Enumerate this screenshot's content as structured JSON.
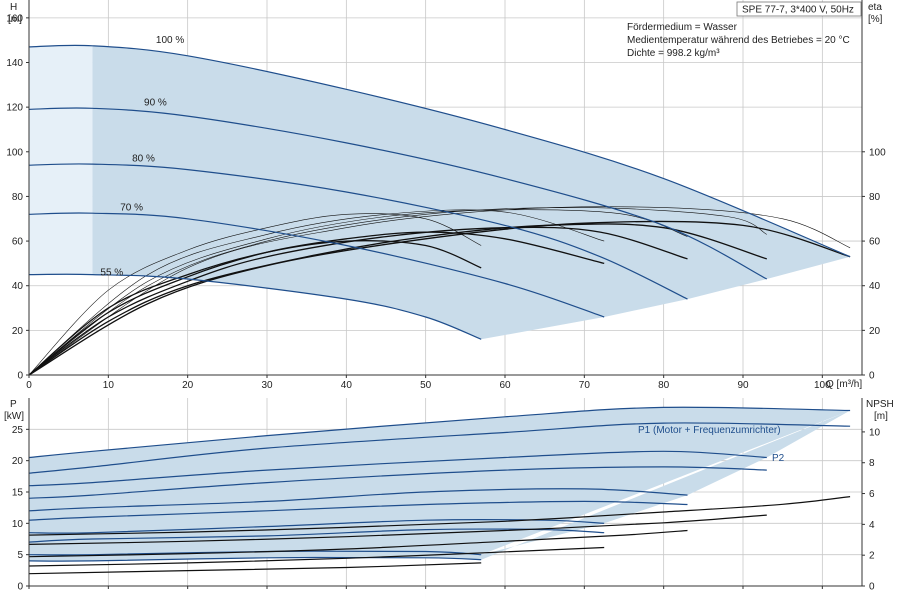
{
  "chart_data": {
    "type": "line",
    "model_label": "SPE 77-7, 3*400 V, 50Hz",
    "info_lines": [
      "Fördermedium = Wasser",
      "Medientemperatur während des Betriebes = 20 °C",
      "Dichte = 998.2 kg/m³"
    ],
    "x_axis": {
      "label": "Q [m³/h]",
      "range": [
        0,
        105
      ],
      "ticks": [
        "0",
        "10",
        "20",
        "30",
        "40",
        "50",
        "60",
        "70",
        "80",
        "90",
        "100"
      ]
    },
    "top": {
      "left_label_1": "H",
      "left_label_2": "[m]",
      "right_label_1": "eta",
      "right_label_2": "[%]",
      "y_range": [
        0,
        168
      ],
      "y_ticks": [
        "0",
        "20",
        "40",
        "60",
        "80",
        "100",
        "120",
        "140",
        "160"
      ],
      "eta_range": [
        0,
        168
      ],
      "eta_ticks": [
        "0",
        "20",
        "40",
        "60",
        "80",
        "100"
      ],
      "series": [
        {
          "name": "100 %",
          "x": [
            0,
            8,
            20,
            40,
            60,
            80,
            103.5
          ],
          "y": [
            147,
            147.5,
            143,
            128,
            110,
            88,
            53
          ]
        },
        {
          "name": "90 %",
          "x": [
            0,
            8,
            20,
            40,
            60,
            80,
            93
          ],
          "y": [
            119,
            119.5,
            116,
            104,
            88,
            67,
            43
          ]
        },
        {
          "name": "80 %",
          "x": [
            0,
            8,
            20,
            40,
            60,
            72,
            83
          ],
          "y": [
            94,
            94.5,
            92,
            82,
            67,
            53,
            34
          ]
        },
        {
          "name": "70 %",
          "x": [
            0,
            8,
            20,
            40,
            60,
            72.5
          ],
          "y": [
            72,
            72.5,
            70,
            58,
            41,
            26
          ]
        },
        {
          "name": "55 %",
          "x": [
            0,
            8,
            20,
            40,
            50,
            57
          ],
          "y": [
            45,
            45,
            43,
            34,
            26,
            16
          ]
        }
      ],
      "eta_curves": [
        {
          "x": [
            0,
            10,
            20,
            30,
            40,
            50,
            57
          ],
          "y": [
            0,
            30,
            45,
            55,
            60,
            58,
            48
          ]
        },
        {
          "x": [
            0,
            10,
            20,
            30,
            40,
            50,
            60,
            72.5
          ],
          "y": [
            0,
            28,
            44,
            55,
            61,
            64,
            61,
            50
          ]
        },
        {
          "x": [
            0,
            10,
            20,
            30,
            45,
            60,
            72,
            83
          ],
          "y": [
            0,
            26,
            42,
            53,
            62,
            66,
            64,
            52
          ]
        },
        {
          "x": [
            0,
            10,
            20,
            35,
            50,
            65,
            80,
            93
          ],
          "y": [
            0,
            24,
            40,
            53,
            62,
            67,
            66,
            52
          ]
        },
        {
          "x": [
            0,
            15,
            30,
            50,
            70,
            90,
            103.5
          ],
          "y": [
            0,
            32,
            49,
            61,
            68,
            67,
            53
          ]
        }
      ],
      "eta_thin": [
        {
          "x": [
            0,
            10,
            20,
            30,
            40,
            50,
            57
          ],
          "y": [
            0,
            38,
            56,
            66,
            72,
            70,
            58
          ]
        },
        {
          "x": [
            0,
            15,
            30,
            45,
            60,
            72.5
          ],
          "y": [
            0,
            45,
            63,
            72,
            73,
            60
          ]
        },
        {
          "x": [
            0,
            15,
            30,
            45,
            60,
            75,
            83
          ],
          "y": [
            0,
            42,
            61,
            71,
            74,
            72,
            62
          ]
        },
        {
          "x": [
            0,
            15,
            30,
            50,
            70,
            88,
            93
          ],
          "y": [
            0,
            40,
            60,
            72,
            75,
            71,
            63
          ]
        },
        {
          "x": [
            0,
            20,
            40,
            60,
            80,
            95,
            103.5
          ],
          "y": [
            0,
            48,
            66,
            74,
            75,
            70,
            57
          ]
        }
      ]
    },
    "bottom": {
      "left_label_1": "P",
      "left_label_2": "[kW]",
      "right_label_1": "NPSH",
      "right_label_2": "[m]",
      "y_range": [
        0,
        30
      ],
      "y_ticks": [
        "0",
        "5",
        "10",
        "15",
        "20",
        "25"
      ],
      "npsh_range": [
        0,
        12.2
      ],
      "npsh_ticks": [
        "0",
        "2",
        "4",
        "6",
        "8",
        "10"
      ],
      "p1_label": "P1 (Motor + Frequenzumrichter)",
      "p2_label": "P2",
      "p1_series": [
        {
          "x": [
            0,
            8,
            30,
            60,
            80,
            103.5
          ],
          "y": [
            20.5,
            21.5,
            24,
            27,
            28.5,
            28
          ]
        },
        {
          "x": [
            0,
            8,
            30,
            60,
            80,
            93
          ],
          "y": [
            16,
            16.5,
            18.5,
            20.5,
            21.5,
            20.5
          ]
        },
        {
          "x": [
            0,
            8,
            30,
            50,
            70,
            83
          ],
          "y": [
            12,
            12.5,
            13.5,
            15,
            15.5,
            14.5
          ]
        },
        {
          "x": [
            0,
            8,
            30,
            50,
            65,
            72.5
          ],
          "y": [
            8.5,
            8.5,
            9.5,
            10.5,
            10.5,
            10
          ]
        },
        {
          "x": [
            0,
            8,
            30,
            50,
            57
          ],
          "y": [
            5,
            5,
            5.5,
            5.5,
            5
          ]
        }
      ],
      "p2_series": [
        {
          "x": [
            0,
            8,
            30,
            60,
            80,
            103.5
          ],
          "y": [
            18,
            19,
            22,
            24.5,
            26,
            25.5
          ]
        },
        {
          "x": [
            0,
            8,
            30,
            60,
            80,
            93
          ],
          "y": [
            14,
            14.5,
            16.5,
            18.5,
            19,
            18.5
          ]
        },
        {
          "x": [
            0,
            8,
            30,
            50,
            70,
            83
          ],
          "y": [
            10.5,
            11,
            12,
            13,
            13.5,
            13
          ]
        },
        {
          "x": [
            0,
            8,
            30,
            50,
            65,
            72.5
          ],
          "y": [
            7,
            7.5,
            8,
            9,
            9,
            8.5
          ]
        },
        {
          "x": [
            0,
            8,
            30,
            50,
            57
          ],
          "y": [
            4,
            4,
            4.5,
            4.5,
            4.2
          ]
        }
      ],
      "npsh_series": [
        {
          "x": [
            0,
            20,
            40,
            60,
            80,
            95,
            103.5
          ],
          "y": [
            3.3,
            3.5,
            3.8,
            4.2,
            4.8,
            5.3,
            5.8
          ]
        },
        {
          "x": [
            0,
            20,
            40,
            60,
            80,
            93
          ],
          "y": [
            2.7,
            2.9,
            3.2,
            3.6,
            4.1,
            4.6
          ]
        },
        {
          "x": [
            0,
            20,
            40,
            60,
            75,
            83
          ],
          "y": [
            1.9,
            2.1,
            2.4,
            2.9,
            3.3,
            3.6
          ]
        },
        {
          "x": [
            0,
            20,
            40,
            55,
            72.5
          ],
          "y": [
            1.3,
            1.5,
            1.8,
            2.1,
            2.5
          ]
        },
        {
          "x": [
            0,
            20,
            40,
            57
          ],
          "y": [
            0.8,
            1.0,
            1.2,
            1.5
          ]
        }
      ]
    }
  }
}
